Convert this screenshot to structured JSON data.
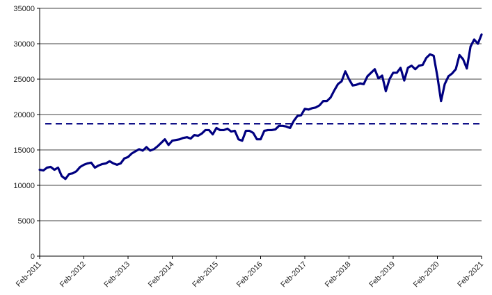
{
  "chart_data": {
    "type": "line",
    "title": "",
    "xlabel": "",
    "ylabel": "",
    "x_ticks": [
      "Feb-2011",
      "Feb-2012",
      "Feb-2013",
      "Feb-2014",
      "Feb-2015",
      "Feb-2016",
      "Feb-2017",
      "Feb-2018",
      "Feb-2019",
      "Feb-2020",
      "Feb-2021"
    ],
    "y_ticks": [
      0,
      5000,
      10000,
      15000,
      20000,
      25000,
      30000,
      35000
    ],
    "ylim": [
      0,
      35000
    ],
    "xlim": [
      "2011-02",
      "2021-02"
    ],
    "grid": "horizontal",
    "legend": "none",
    "series_color": "#000080",
    "reference_line": {
      "value": 18700,
      "style": "dashed",
      "color": "#000080"
    },
    "series": [
      {
        "points": [
          [
            "2011-02",
            12200
          ],
          [
            "2011-03",
            12100
          ],
          [
            "2011-04",
            12500
          ],
          [
            "2011-05",
            12600
          ],
          [
            "2011-06",
            12200
          ],
          [
            "2011-07",
            12500
          ],
          [
            "2011-08",
            11300
          ],
          [
            "2011-09",
            10900
          ],
          [
            "2011-10",
            11600
          ],
          [
            "2011-11",
            11700
          ],
          [
            "2011-12",
            12000
          ],
          [
            "2012-01",
            12600
          ],
          [
            "2012-02",
            12900
          ],
          [
            "2012-03",
            13100
          ],
          [
            "2012-04",
            13200
          ],
          [
            "2012-05",
            12500
          ],
          [
            "2012-06",
            12800
          ],
          [
            "2012-07",
            13000
          ],
          [
            "2012-08",
            13100
          ],
          [
            "2012-09",
            13400
          ],
          [
            "2012-10",
            13100
          ],
          [
            "2012-11",
            12900
          ],
          [
            "2012-12",
            13100
          ],
          [
            "2013-01",
            13800
          ],
          [
            "2013-02",
            14000
          ],
          [
            "2013-03",
            14500
          ],
          [
            "2013-04",
            14800
          ],
          [
            "2013-05",
            15100
          ],
          [
            "2013-06",
            14900
          ],
          [
            "2013-07",
            15400
          ],
          [
            "2013-08",
            14900
          ],
          [
            "2013-09",
            15100
          ],
          [
            "2013-10",
            15500
          ],
          [
            "2013-11",
            16000
          ],
          [
            "2013-12",
            16500
          ],
          [
            "2014-01",
            15700
          ],
          [
            "2014-02",
            16300
          ],
          [
            "2014-03",
            16400
          ],
          [
            "2014-04",
            16500
          ],
          [
            "2014-05",
            16700
          ],
          [
            "2014-06",
            16800
          ],
          [
            "2014-07",
            16600
          ],
          [
            "2014-08",
            17100
          ],
          [
            "2014-09",
            17000
          ],
          [
            "2014-10",
            17300
          ],
          [
            "2014-11",
            17800
          ],
          [
            "2014-12",
            17800
          ],
          [
            "2015-01",
            17200
          ],
          [
            "2015-02",
            18100
          ],
          [
            "2015-03",
            17800
          ],
          [
            "2015-04",
            17800
          ],
          [
            "2015-05",
            18000
          ],
          [
            "2015-06",
            17600
          ],
          [
            "2015-07",
            17700
          ],
          [
            "2015-08",
            16500
          ],
          [
            "2015-09",
            16300
          ],
          [
            "2015-10",
            17700
          ],
          [
            "2015-11",
            17700
          ],
          [
            "2015-12",
            17400
          ],
          [
            "2016-01",
            16500
          ],
          [
            "2016-02",
            16500
          ],
          [
            "2016-03",
            17700
          ],
          [
            "2016-04",
            17800
          ],
          [
            "2016-05",
            17800
          ],
          [
            "2016-06",
            17900
          ],
          [
            "2016-07",
            18400
          ],
          [
            "2016-08",
            18400
          ],
          [
            "2016-09",
            18300
          ],
          [
            "2016-10",
            18100
          ],
          [
            "2016-11",
            19100
          ],
          [
            "2016-12",
            19800
          ],
          [
            "2017-01",
            19900
          ],
          [
            "2017-02",
            20800
          ],
          [
            "2017-03",
            20700
          ],
          [
            "2017-04",
            20900
          ],
          [
            "2017-05",
            21000
          ],
          [
            "2017-06",
            21300
          ],
          [
            "2017-07",
            21900
          ],
          [
            "2017-08",
            21900
          ],
          [
            "2017-09",
            22400
          ],
          [
            "2017-10",
            23400
          ],
          [
            "2017-11",
            24300
          ],
          [
            "2017-12",
            24700
          ],
          [
            "2018-01",
            26100
          ],
          [
            "2018-02",
            25000
          ],
          [
            "2018-03",
            24100
          ],
          [
            "2018-04",
            24200
          ],
          [
            "2018-05",
            24400
          ],
          [
            "2018-06",
            24300
          ],
          [
            "2018-07",
            25400
          ],
          [
            "2018-08",
            25900
          ],
          [
            "2018-09",
            26400
          ],
          [
            "2018-10",
            25100
          ],
          [
            "2018-11",
            25500
          ],
          [
            "2018-12",
            23300
          ],
          [
            "2019-01",
            25000
          ],
          [
            "2019-02",
            25900
          ],
          [
            "2019-03",
            25900
          ],
          [
            "2019-04",
            26600
          ],
          [
            "2019-05",
            24800
          ],
          [
            "2019-06",
            26600
          ],
          [
            "2019-07",
            26900
          ],
          [
            "2019-08",
            26400
          ],
          [
            "2019-09",
            26900
          ],
          [
            "2019-10",
            27000
          ],
          [
            "2019-11",
            28000
          ],
          [
            "2019-12",
            28500
          ],
          [
            "2020-01",
            28300
          ],
          [
            "2020-02",
            25400
          ],
          [
            "2020-03",
            21900
          ],
          [
            "2020-04",
            24300
          ],
          [
            "2020-05",
            25400
          ],
          [
            "2020-06",
            25800
          ],
          [
            "2020-07",
            26400
          ],
          [
            "2020-08",
            28400
          ],
          [
            "2020-09",
            27800
          ],
          [
            "2020-10",
            26500
          ],
          [
            "2020-11",
            29600
          ],
          [
            "2020-12",
            30600
          ],
          [
            "2021-01",
            30000
          ],
          [
            "2021-02",
            31300
          ]
        ]
      }
    ]
  }
}
